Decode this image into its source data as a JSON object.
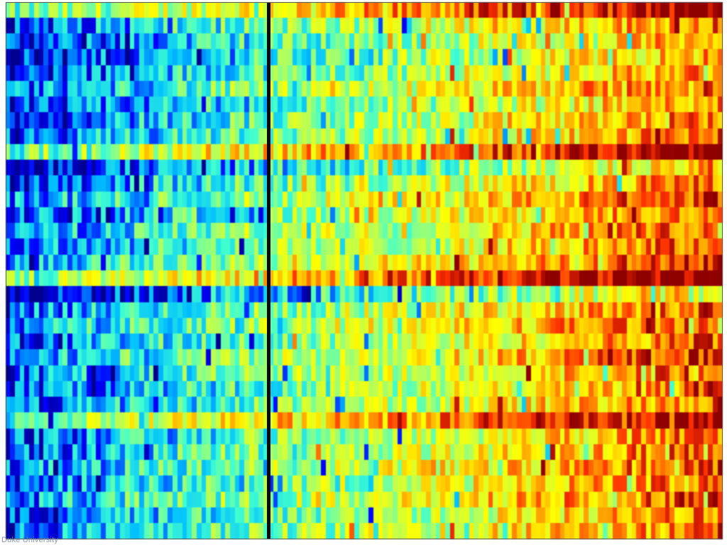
{
  "watermark": "Duke University",
  "chart_data": {
    "type": "heatmap",
    "title": "",
    "xlabel": "",
    "ylabel": "",
    "colormap": "jet",
    "colormap_stops": [
      "#00008f",
      "#0000ff",
      "#00bfff",
      "#40ffd0",
      "#b0ff60",
      "#ffff00",
      "#ffa000",
      "#ff3000",
      "#8f0000"
    ],
    "rows": 34,
    "cols": 150,
    "value_range": [
      0,
      1
    ],
    "divider_column": 55,
    "divider_color": "#0a0a0a",
    "gradient": {
      "description": "Values increase left to right: blue on the left third, cyan/green/yellow in the middle, orange/red on the far right",
      "left_mean": 0.2,
      "divider_mean": 0.48,
      "right_mean": 0.88
    },
    "row_offsets": [
      0.18,
      -0.05,
      -0.1,
      -0.12,
      -0.08,
      -0.02,
      -0.1,
      -0.06,
      -0.04,
      0.2,
      -0.16,
      -0.06,
      0.02,
      -0.04,
      0.0,
      -0.02,
      0.04,
      0.22,
      -0.18,
      -0.02,
      0.02,
      -0.04,
      0.03,
      -0.02,
      -0.06,
      -0.04,
      0.18,
      -0.05,
      -0.02,
      0.0,
      -0.04,
      0.02,
      -0.06,
      -0.04
    ],
    "noise_amplitude": 0.16,
    "annotations": [
      "black vertical divider separating two sample groups"
    ]
  }
}
